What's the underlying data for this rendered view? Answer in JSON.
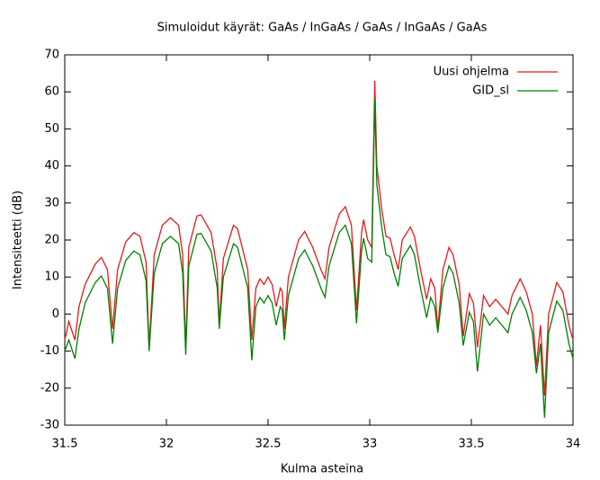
{
  "chart_data": {
    "type": "line",
    "title": "Simuloidut käyrät: GaAs / InGaAs / GaAs / InGaAs / GaAs",
    "x_label": "Kulma asteina",
    "y_label": "Intensiteetti (dB)",
    "x": [
      31.5,
      31.52,
      31.55,
      31.57,
      31.6,
      31.65,
      31.68,
      31.71,
      31.735,
      31.76,
      31.8,
      31.84,
      31.87,
      31.9,
      31.915,
      31.94,
      31.98,
      32.02,
      32.06,
      32.08,
      32.095,
      32.11,
      32.15,
      32.17,
      32.22,
      32.25,
      32.26,
      32.28,
      32.33,
      32.35,
      32.4,
      32.42,
      32.44,
      32.46,
      32.48,
      32.5,
      32.52,
      32.54,
      32.56,
      32.57,
      32.58,
      32.6,
      32.65,
      32.68,
      32.72,
      32.76,
      32.78,
      32.8,
      32.85,
      32.88,
      32.91,
      32.935,
      32.96,
      32.97,
      32.99,
      33.01,
      33.025,
      33.035,
      33.06,
      33.08,
      33.1,
      33.12,
      33.14,
      33.16,
      33.2,
      33.22,
      33.25,
      33.28,
      33.3,
      33.32,
      33.335,
      33.36,
      33.39,
      33.41,
      33.44,
      33.46,
      33.49,
      33.51,
      33.53,
      33.56,
      33.59,
      33.62,
      33.65,
      33.68,
      33.7,
      33.74,
      33.77,
      33.8,
      33.82,
      33.84,
      33.86,
      33.88,
      33.92,
      33.95,
      33.98,
      34.0
    ],
    "series": [
      {
        "name": "Uusi ohjelma",
        "color": "#e41a1c",
        "values": [
          -7,
          -2,
          -7,
          2,
          8,
          13.5,
          15.3,
          12,
          -4,
          12,
          19.5,
          22,
          21,
          14,
          -9,
          16,
          24,
          26,
          24,
          16,
          -9,
          18,
          26.5,
          26.8,
          22,
          12,
          -3,
          15,
          24,
          23,
          12,
          -7,
          7,
          9.5,
          8,
          10,
          8,
          2,
          7,
          6,
          -4,
          10,
          20,
          22.3,
          18,
          12,
          9.5,
          18,
          27,
          29,
          24,
          1,
          22,
          25.5,
          20,
          18,
          63,
          40,
          28,
          21,
          20.5,
          16,
          12,
          20,
          23.5,
          21,
          12,
          4,
          9.5,
          7,
          -4,
          12,
          18,
          16,
          8,
          -6,
          5.5,
          3,
          -9,
          5,
          2,
          4,
          2,
          0,
          5,
          9.5,
          6,
          0,
          -14,
          -3,
          -22,
          0,
          8.5,
          6,
          -3,
          -7
        ]
      },
      {
        "name": "GID_sl",
        "color": "#008000",
        "values": [
          -10,
          -7,
          -12,
          -4,
          3,
          8.5,
          10.3,
          7,
          -8,
          7,
          14.5,
          17,
          16,
          9,
          -10,
          11,
          19,
          21,
          19,
          11,
          -11,
          13,
          21.5,
          21.8,
          17,
          7,
          -4,
          10,
          19,
          18,
          7,
          -12.5,
          2,
          4.5,
          3,
          5,
          3,
          -3,
          2,
          1,
          -7,
          5,
          15,
          17.3,
          13,
          7,
          4.5,
          13,
          22,
          24,
          19,
          -2.5,
          17,
          20.5,
          15,
          14,
          58,
          35,
          23,
          16,
          15.5,
          11,
          7.5,
          15,
          18.5,
          16,
          7,
          -1,
          4.5,
          2,
          -5,
          7,
          13,
          11,
          3,
          -8.5,
          0.5,
          -2,
          -15.5,
          0,
          -3,
          -1,
          -3,
          -5,
          0,
          4.5,
          1,
          -5,
          -16,
          -8,
          -28,
          -5,
          3.5,
          1,
          -8,
          -12
        ]
      }
    ],
    "xlim": [
      31.5,
      34
    ],
    "ylim": [
      -30,
      70
    ],
    "xticks": [
      31.5,
      32,
      32.5,
      33,
      33.5,
      34
    ],
    "yticks": [
      -30,
      -20,
      -10,
      0,
      10,
      20,
      30,
      40,
      50,
      60,
      70
    ],
    "grid": false,
    "legend": "top-right"
  }
}
